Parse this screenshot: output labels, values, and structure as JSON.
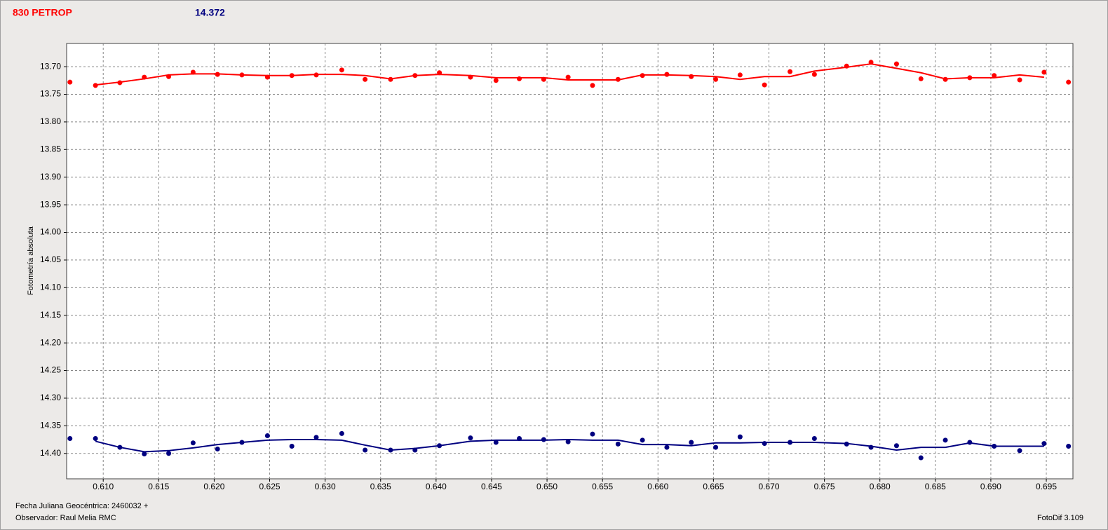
{
  "chart_data": {
    "type": "scatter",
    "ylabel": "Fotometría absoluta",
    "footer_left_1": "Fecha Juliana Geocéntrica: 2460032 +",
    "footer_left_2": "Observador: Raul Melia RMC",
    "footer_right": "FotoDif 3.109",
    "xlim": [
      0.6067,
      0.6974
    ],
    "ylim": [
      14.446,
      13.658
    ],
    "grid": true,
    "xticks": [
      {
        "value": 0.61,
        "label": "0.610"
      },
      {
        "value": 0.615,
        "label": "0.615"
      },
      {
        "value": 0.62,
        "label": "0.620"
      },
      {
        "value": 0.625,
        "label": "0.625"
      },
      {
        "value": 0.63,
        "label": "0.630"
      },
      {
        "value": 0.635,
        "label": "0.635"
      },
      {
        "value": 0.64,
        "label": "0.640"
      },
      {
        "value": 0.645,
        "label": "0.645"
      },
      {
        "value": 0.65,
        "label": "0.650"
      },
      {
        "value": 0.655,
        "label": "0.655"
      },
      {
        "value": 0.66,
        "label": "0.660"
      },
      {
        "value": 0.665,
        "label": "0.665"
      },
      {
        "value": 0.67,
        "label": "0.670"
      },
      {
        "value": 0.675,
        "label": "0.675"
      },
      {
        "value": 0.68,
        "label": "0.680"
      },
      {
        "value": 0.685,
        "label": "0.685"
      },
      {
        "value": 0.69,
        "label": "0.690"
      },
      {
        "value": 0.695,
        "label": "0.695"
      }
    ],
    "yticks": [
      {
        "value": 13.7,
        "label": "13.70"
      },
      {
        "value": 13.75,
        "label": "13.75"
      },
      {
        "value": 13.8,
        "label": "13.80"
      },
      {
        "value": 13.85,
        "label": "13.85"
      },
      {
        "value": 13.9,
        "label": "13.90"
      },
      {
        "value": 13.95,
        "label": "13.95"
      },
      {
        "value": 14.0,
        "label": "14.00"
      },
      {
        "value": 14.05,
        "label": "14.05"
      },
      {
        "value": 14.1,
        "label": "14.10"
      },
      {
        "value": 14.15,
        "label": "14.15"
      },
      {
        "value": 14.2,
        "label": "14.20"
      },
      {
        "value": 14.25,
        "label": "14.25"
      },
      {
        "value": 14.3,
        "label": "14.30"
      },
      {
        "value": 14.35,
        "label": "14.35"
      },
      {
        "value": 14.4,
        "label": "14.40"
      }
    ],
    "series": [
      {
        "name": "830 PETROP",
        "color": "#ff0000",
        "x": [
          0.607,
          0.6093,
          0.6115,
          0.6137,
          0.6159,
          0.6181,
          0.6203,
          0.6225,
          0.6248,
          0.627,
          0.6292,
          0.6315,
          0.6336,
          0.6359,
          0.6381,
          0.6403,
          0.6431,
          0.6454,
          0.6475,
          0.6497,
          0.6519,
          0.6541,
          0.6564,
          0.6586,
          0.6608,
          0.663,
          0.6652,
          0.6674,
          0.6696,
          0.6719,
          0.6741,
          0.677,
          0.6792,
          0.6815,
          0.6837,
          0.6859,
          0.6881,
          0.6903,
          0.6926,
          0.6948,
          0.697
        ],
        "values": [
          13.728,
          13.734,
          13.729,
          13.719,
          13.718,
          13.71,
          13.714,
          13.715,
          13.719,
          13.716,
          13.715,
          13.706,
          13.723,
          13.723,
          13.716,
          13.711,
          13.719,
          13.725,
          13.722,
          13.723,
          13.719,
          13.734,
          13.723,
          13.716,
          13.714,
          13.718,
          13.723,
          13.715,
          13.733,
          13.709,
          13.714,
          13.699,
          13.692,
          13.695,
          13.722,
          13.723,
          13.72,
          13.716,
          13.724,
          13.71,
          13.728
        ],
        "fit": {
          "x": [
            0.6093,
            0.6115,
            0.6137,
            0.6159,
            0.6181,
            0.6203,
            0.6225,
            0.6248,
            0.627,
            0.6292,
            0.6315,
            0.6336,
            0.6359,
            0.6381,
            0.6403,
            0.6431,
            0.6454,
            0.6475,
            0.6497,
            0.6519,
            0.6541,
            0.6564,
            0.6586,
            0.6608,
            0.663,
            0.6652,
            0.6674,
            0.6696,
            0.6719,
            0.6741,
            0.677,
            0.6792,
            0.6815,
            0.6837,
            0.6859,
            0.6881,
            0.6903,
            0.6926,
            0.6948
          ],
          "values": [
            13.733,
            13.728,
            13.722,
            13.715,
            13.713,
            13.713,
            13.715,
            13.716,
            13.716,
            13.714,
            13.714,
            13.716,
            13.722,
            13.716,
            13.714,
            13.716,
            13.72,
            13.72,
            13.72,
            13.724,
            13.724,
            13.724,
            13.715,
            13.715,
            13.716,
            13.718,
            13.723,
            13.718,
            13.718,
            13.708,
            13.701,
            13.695,
            13.703,
            13.711,
            13.722,
            13.72,
            13.72,
            13.715,
            13.719
          ]
        }
      },
      {
        "name": "14.372",
        "color": "#000080",
        "x": [
          0.607,
          0.6093,
          0.6115,
          0.6137,
          0.6159,
          0.6181,
          0.6203,
          0.6225,
          0.6248,
          0.627,
          0.6292,
          0.6315,
          0.6336,
          0.6359,
          0.6381,
          0.6403,
          0.6431,
          0.6454,
          0.6475,
          0.6497,
          0.6519,
          0.6541,
          0.6564,
          0.6586,
          0.6608,
          0.663,
          0.6652,
          0.6674,
          0.6696,
          0.6719,
          0.6741,
          0.677,
          0.6792,
          0.6815,
          0.6837,
          0.6859,
          0.6881,
          0.6903,
          0.6926,
          0.6948,
          0.697
        ],
        "values": [
          14.373,
          14.373,
          14.389,
          14.401,
          14.4,
          14.381,
          14.392,
          14.38,
          14.368,
          14.387,
          14.371,
          14.364,
          14.394,
          14.394,
          14.394,
          14.386,
          14.372,
          14.38,
          14.373,
          14.375,
          14.379,
          14.365,
          14.383,
          14.376,
          14.389,
          14.38,
          14.389,
          14.37,
          14.382,
          14.38,
          14.373,
          14.383,
          14.389,
          14.386,
          14.408,
          14.376,
          14.38,
          14.387,
          14.395,
          14.382,
          14.387
        ],
        "fit": {
          "x": [
            0.6093,
            0.6115,
            0.6137,
            0.6159,
            0.6181,
            0.6203,
            0.6225,
            0.6248,
            0.627,
            0.6292,
            0.6315,
            0.6336,
            0.6359,
            0.6381,
            0.6403,
            0.6431,
            0.6454,
            0.6475,
            0.6497,
            0.6519,
            0.6541,
            0.6564,
            0.6586,
            0.6608,
            0.663,
            0.6652,
            0.6674,
            0.6696,
            0.6719,
            0.6741,
            0.677,
            0.6792,
            0.6815,
            0.6837,
            0.6859,
            0.6881,
            0.6903,
            0.6926,
            0.6948
          ],
          "values": [
            14.378,
            14.389,
            14.397,
            14.395,
            14.39,
            14.384,
            14.38,
            14.376,
            14.375,
            14.375,
            14.376,
            14.385,
            14.394,
            14.391,
            14.386,
            14.378,
            14.376,
            14.376,
            14.376,
            14.375,
            14.376,
            14.376,
            14.384,
            14.384,
            14.386,
            14.381,
            14.381,
            14.38,
            14.38,
            14.38,
            14.382,
            14.387,
            14.394,
            14.389,
            14.389,
            14.381,
            14.387,
            14.387,
            14.387
          ]
        }
      }
    ]
  }
}
